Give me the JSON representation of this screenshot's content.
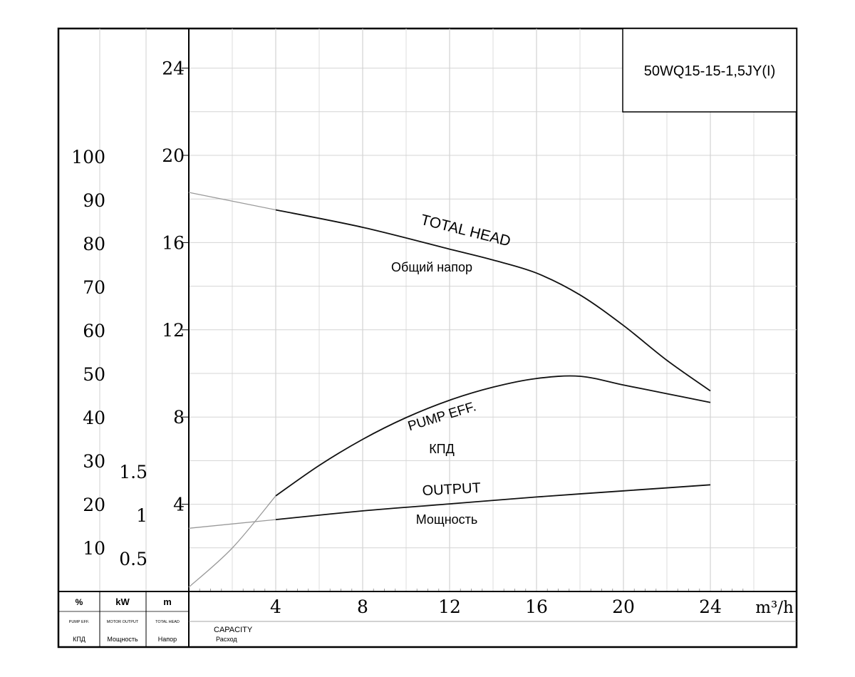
{
  "chart_data": {
    "type": "line",
    "model_label": "50WQ15-15-1,5JY(I)",
    "x_axis": {
      "ticks": [
        4,
        8,
        12,
        16,
        20,
        24
      ],
      "tick_labels": [
        "4",
        "8",
        "12",
        "16",
        "20",
        "24"
      ],
      "unit_label": "m³/h",
      "range": [
        0,
        28
      ],
      "label_en": "CAPACITY",
      "label_ru": "Расход"
    },
    "head_axis": {
      "ticks": [
        4,
        8,
        12,
        16,
        20,
        24
      ],
      "tick_labels": [
        "4",
        "8",
        "12",
        "16",
        "20",
        "24"
      ],
      "range": [
        0,
        26
      ],
      "unit": "m",
      "label_en": "TOTAL HEAD",
      "label_ru": "Напор"
    },
    "eff_axis": {
      "ticks": [
        10,
        20,
        30,
        40,
        50,
        60,
        70,
        80,
        90,
        100
      ],
      "tick_labels": [
        "10",
        "20",
        "30",
        "40",
        "50",
        "60",
        "70",
        "80",
        "90",
        "100"
      ],
      "unit": "%",
      "label_en": "PUMP EFF.",
      "label_ru": "КПД"
    },
    "power_axis": {
      "ticks": [
        0.5,
        1,
        1.5
      ],
      "tick_labels": [
        "0.5",
        "1",
        "1.5"
      ],
      "unit": "kW",
      "label_en": "MOTOR OUTPUT",
      "label_ru": "Мощность"
    },
    "grid": true,
    "series": [
      {
        "label_en": "TOTAL HEAD",
        "label_ru": "Общий напор",
        "axis": "head",
        "x": [
          0,
          4,
          8,
          12,
          14,
          16,
          18,
          20,
          22,
          24
        ],
        "y": [
          18.3,
          17.5,
          16.7,
          15.7,
          15.2,
          14.6,
          13.6,
          12.2,
          10.6,
          9.2
        ]
      },
      {
        "label_en": "PUMP EFF.",
        "label_ru": "КПД",
        "axis": "eff",
        "x": [
          0,
          2,
          4,
          6,
          8,
          10,
          12,
          14,
          16,
          18,
          20,
          22,
          24
        ],
        "y": [
          1,
          10,
          22,
          29,
          35,
          40,
          44,
          47,
          49,
          49.5,
          47.5,
          45.5,
          43.5
        ]
      },
      {
        "label_en": "OUTPUT",
        "label_ru": "Мощность",
        "axis": "power",
        "x": [
          0,
          4,
          8,
          12,
          16,
          20,
          24
        ],
        "y": [
          0.85,
          0.95,
          1.05,
          1.13,
          1.21,
          1.28,
          1.35
        ]
      }
    ]
  },
  "footer": {
    "eff_unit": "%",
    "power_unit": "kW",
    "head_unit": "m",
    "eff_label_en": "PUMP EFF.",
    "power_label_en": "MOTOR OUTPUT",
    "head_label_en": "TOTAL HEAD",
    "eff_label_ru": "КПД",
    "power_label_ru": "Мощность",
    "head_label_ru": "Напор"
  }
}
